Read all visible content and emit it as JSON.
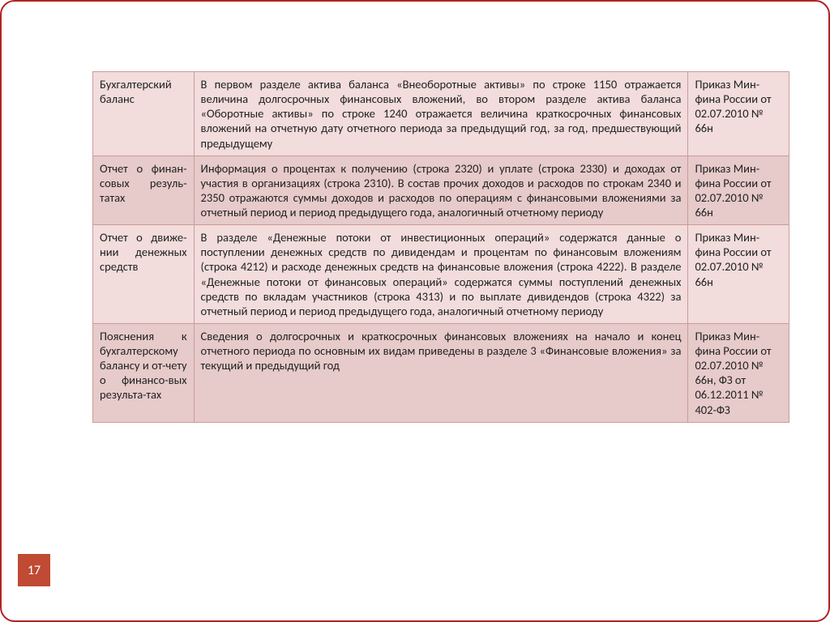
{
  "page_number": "17",
  "table": {
    "type": "table",
    "border_color": "#cc9a9a",
    "row_bg_even": "#f2dcdc",
    "row_bg_odd": "#e7caca",
    "text_color": "#222222",
    "fontsize": 14.5,
    "col_widths_pct": [
      14.5,
      71,
      14.5
    ],
    "rows": [
      {
        "c1": "Бухгалтерский баланс",
        "c2": "В первом разделе актива баланса «Внеоборотные активы» по строке 1150 отражается величина долгосрочных финансовых вложений, во втором разделе актива баланса «Оборотные активы» по строке 1240 отражается величина краткосрочных финансовых вложений на отчетную дату отчетного периода за предыдущий год, за год, предшествующий предыдущему",
        "c3": "Приказ Мин-фина России от 02.07.2010 № 66н"
      },
      {
        "c1": "Отчет о финан-совых резуль-татах",
        "c2": "Информация о процентах к получению (строка 2320) и уплате (строка 2330) и доходах от участия в организациях (строка 2310). В состав прочих доходов и расходов по строкам 2340 и 2350 отражаются суммы доходов и расходов по операциям с финансовыми вложениями за отчетный период и период предыдущего года, аналогичный отчетному периоду",
        "c3": "Приказ Мин-фина России от 02.07.2010 № 66н"
      },
      {
        "c1": "Отчет о движе-нии денежных средств",
        "c2": "В разделе «Денежные потоки от инвестиционных операций» содержатся данные о поступлении денежных средств по дивидендам и процентам по финансовым вложениям (строка 4212) и расходе денежных средств на финансовые вложения (строка 4222). В разделе «Денежные потоки от финансовых операций» содержатся суммы поступлений денежных средств по вкладам участников (строка 4313) и по выплате дивидендов (строка 4322) за отчетный период и период предыдущего года, аналогичный отчетному периоду",
        "c3": "Приказ Мин-фина России от 02.07.2010 № 66н"
      },
      {
        "c1": "Пояснения к бухгалтерскому балансу и от-чету о финансо-вых результа-тах",
        "c2": "Сведения о долгосрочных и краткосрочных финансовых вложениях на начало и конец отчетного периода по основным их видам приведены в разделе 3 «Финансовые вложения» за текущий  и предыдущий год",
        "c3": "Приказ Мин-фина России от 02.07.2010 № 66н, ФЗ от 06.12.2011 № 402-ФЗ"
      }
    ]
  },
  "slide": {
    "border_color": "#b22222",
    "border_radius": 18,
    "page_badge_bg": "#c04a33",
    "page_badge_fg": "#ffffff"
  }
}
